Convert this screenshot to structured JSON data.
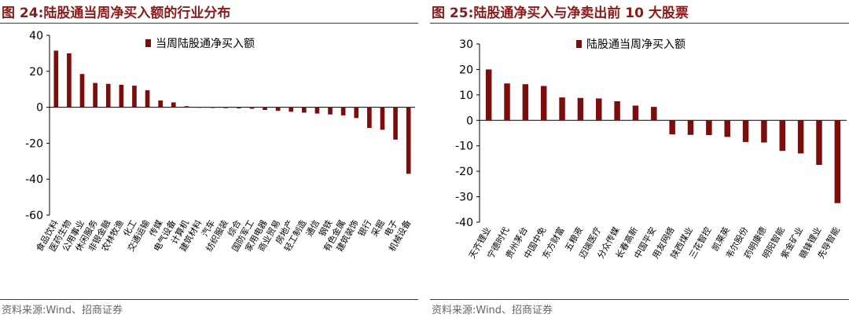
{
  "colors": {
    "accent": "#8b1a1a",
    "bar": "#7b0d0d"
  },
  "charts": {
    "left": {
      "figure_title": "图 24:陆股通当周净买入额的行业分布",
      "source": "资料来源:Wind、招商证券"
    },
    "right": {
      "figure_title": "图 25:陆股通净买入与净卖出前 10 大股票",
      "source": "资料来源:Wind、招商证券"
    }
  },
  "chart_data": [
    {
      "type": "bar",
      "title": "图 24:陆股通当周净买入额的行业分布",
      "xlabel": "",
      "ylabel": "",
      "ylim": [
        -60,
        40
      ],
      "yticks": [
        40,
        20,
        0,
        -20,
        -40,
        -60
      ],
      "grid": false,
      "legend": "top-center",
      "categories": [
        "食品饮料",
        "医药生物",
        "公用事业",
        "休闲服务",
        "非银金融",
        "农林牧渔",
        "化工",
        "交通运输",
        "传媒",
        "电气设备",
        "计算机",
        "建筑材料",
        "汽车",
        "纺织服装",
        "综合",
        "国防军工",
        "家用电器",
        "商业贸易",
        "房地产",
        "轻工制造",
        "通信",
        "钢铁",
        "有色金属",
        "建筑装饰",
        "银行",
        "采掘",
        "电子",
        "机械设备"
      ],
      "series": [
        {
          "name": "当周陆股通净买入额",
          "values": [
            31.5,
            30,
            18.5,
            13.5,
            13,
            12.5,
            12,
            9.5,
            3.8,
            2.7,
            0.6,
            -0.3,
            -0.4,
            -0.5,
            -0.6,
            -0.8,
            -1.5,
            -2,
            -2.5,
            -3,
            -3.5,
            -4,
            -4.5,
            -6,
            -11.5,
            -12.5,
            -18,
            -37
          ]
        }
      ]
    },
    {
      "type": "bar",
      "title": "图 25:陆股通净买入与净卖出前 10 大股票",
      "xlabel": "",
      "ylabel": "",
      "ylim": [
        -40,
        30
      ],
      "yticks": [
        30,
        20,
        10,
        0,
        -10,
        -20,
        -30,
        -40
      ],
      "grid": false,
      "legend": "top-center",
      "categories": [
        "天齐锂业",
        "宁德时代",
        "贵州茅台",
        "中国中免",
        "东方财富",
        "五粮液",
        "迈瑞医疗",
        "分众传媒",
        "长春高新",
        "中国平安",
        "用友网络",
        "陕西煤业",
        "三花智控",
        "凯莱英",
        "韦尔股份",
        "药明康德",
        "明阳智能",
        "紫金矿业",
        "赣锋锂业",
        "先导智能"
      ],
      "series": [
        {
          "name": "陆股通当周净买入额",
          "values": [
            20,
            14.5,
            14.2,
            13.5,
            9,
            8.8,
            8.6,
            7.5,
            5.8,
            5.3,
            -5.5,
            -5.7,
            -5.8,
            -6.5,
            -8.5,
            -8.7,
            -12,
            -13,
            -17.5,
            -32.5
          ]
        }
      ]
    }
  ]
}
